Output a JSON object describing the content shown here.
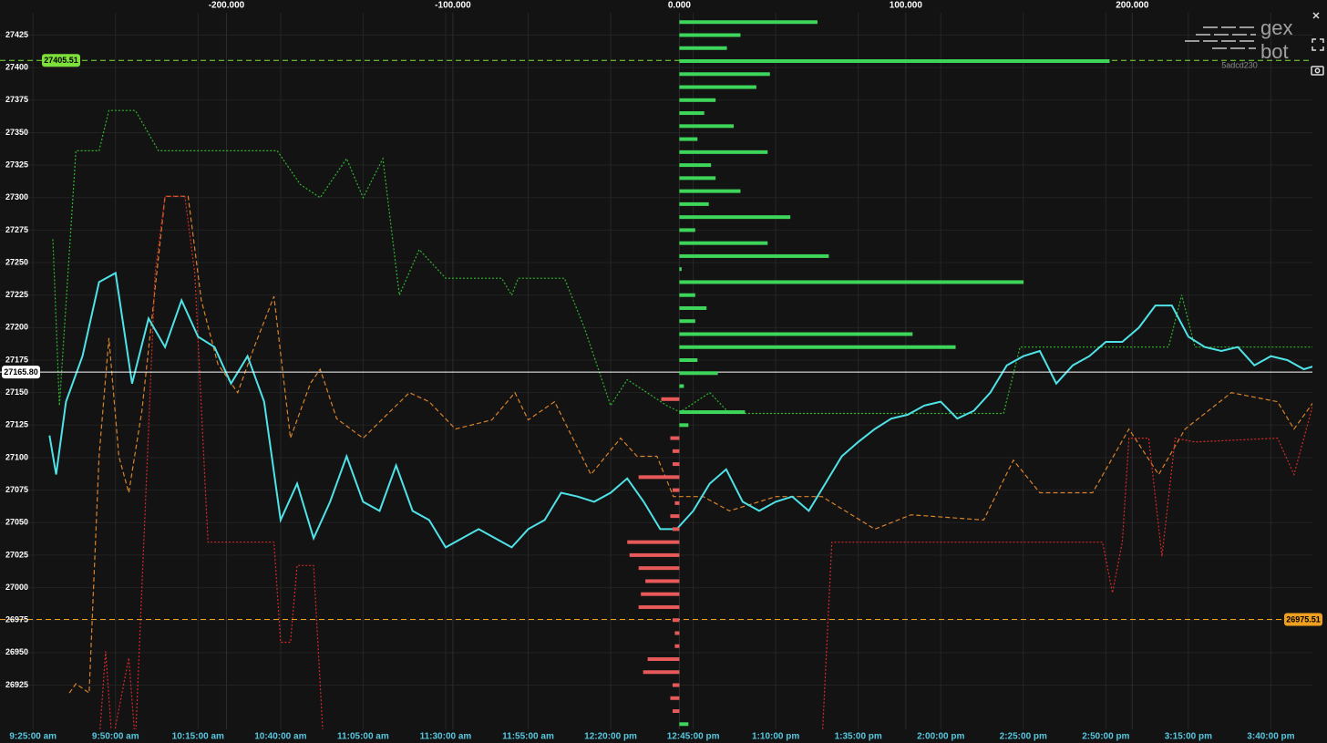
{
  "chart_data": [
    {
      "type": "line",
      "grid": true,
      "xlim": [
        555,
        957
      ],
      "ylim": [
        26891,
        27452
      ],
      "xticks": [
        {
          "value": 565,
          "label": "9:25:00 am"
        },
        {
          "value": 590,
          "label": "9:50:00 am"
        },
        {
          "value": 615,
          "label": "10:15:00 am"
        },
        {
          "value": 640,
          "label": "10:40:00 am"
        },
        {
          "value": 665,
          "label": "11:05:00 am"
        },
        {
          "value": 690,
          "label": "11:30:00 am"
        },
        {
          "value": 715,
          "label": "11:55:00 am"
        },
        {
          "value": 740,
          "label": "12:20:00 pm"
        },
        {
          "value": 765,
          "label": "12:45:00 pm"
        },
        {
          "value": 790,
          "label": "1:10:00 pm"
        },
        {
          "value": 815,
          "label": "1:35:00 pm"
        },
        {
          "value": 840,
          "label": "2:00:00 pm"
        },
        {
          "value": 865,
          "label": "2:25:00 pm"
        },
        {
          "value": 890,
          "label": "2:50:00 pm"
        },
        {
          "value": 915,
          "label": "3:15:00 pm"
        },
        {
          "value": 940,
          "label": "3:40:00 pm"
        }
      ],
      "yticks": [
        26925,
        26950,
        26975,
        27000,
        27025,
        27050,
        27075,
        27100,
        27125,
        27150,
        27175,
        27200,
        27225,
        27250,
        27275,
        27300,
        27325,
        27350,
        27375,
        27400,
        27425
      ],
      "levels": [
        {
          "value": 27405.51,
          "label": "27405.51",
          "color": "#7ee03a",
          "style": "dashed",
          "side": "left"
        },
        {
          "value": 26975.51,
          "label": "26975.51",
          "color": "#f0a020",
          "style": "dashed",
          "side": "right"
        },
        {
          "value": 27165.8,
          "label": "27165.80",
          "color": "#ffffff",
          "style": "solid",
          "side": "left"
        }
      ],
      "series": [
        {
          "color": "#2fb52f",
          "style": "dotted",
          "x": [
            571,
            573,
            578,
            585,
            588,
            596,
            603,
            639,
            646,
            652,
            660,
            665,
            671,
            676,
            682,
            690,
            707,
            710,
            712,
            726,
            732,
            740,
            745,
            757,
            761,
            770,
            776,
            859,
            864,
            909,
            913,
            917,
            956
          ],
          "values": [
            27268,
            27140,
            27336,
            27336,
            27367,
            27367,
            27336,
            27336,
            27310,
            27300,
            27330,
            27300,
            27330,
            27225,
            27260,
            27238,
            27238,
            27225,
            27238,
            27238,
            27200,
            27140,
            27160,
            27140,
            27135,
            27150,
            27134,
            27134,
            27185,
            27185,
            27225,
            27185,
            27185
          ]
        },
        {
          "color": "#d9822b",
          "style": "dashed",
          "x": [
            576,
            578,
            582,
            585,
            588,
            591,
            594,
            598,
            605,
            612,
            616,
            621,
            627,
            632,
            638,
            643,
            649,
            652,
            657,
            665,
            679,
            685,
            693,
            704,
            711,
            715,
            723,
            734,
            743,
            748,
            754,
            759,
            768,
            776,
            790,
            804,
            820,
            831,
            853,
            862,
            870,
            886,
            897,
            906,
            914,
            928,
            942,
            947,
            953,
            956
          ],
          "values": [
            26919,
            26926,
            26919,
            27101,
            27192,
            27101,
            27073,
            27136,
            27301,
            27301,
            27221,
            27172,
            27150,
            27185,
            27224,
            27115,
            27157,
            27168,
            27130,
            27115,
            27150,
            27143,
            27122,
            27129,
            27150,
            27129,
            27143,
            27087,
            27115,
            27101,
            27101,
            27070,
            27070,
            27059,
            27070,
            27070,
            27045,
            27056,
            27052,
            27098,
            27073,
            27073,
            27122,
            27087,
            27122,
            27150,
            27143,
            27122,
            27143,
            27133
          ]
        },
        {
          "color": "#d42a2a",
          "style": "dotted",
          "x": [
            585,
            587,
            589,
            594,
            596,
            602,
            605,
            611,
            614,
            618,
            638,
            640,
            643,
            645,
            650,
            653,
            720,
            804,
            807,
            889,
            892,
            895,
            897,
            903,
            907,
            911,
            917,
            942,
            947,
            953,
            956
          ],
          "values": [
            26880,
            26951,
            26880,
            26946,
            26880,
            27242,
            27301,
            27301,
            27242,
            27035,
            27035,
            26958,
            26958,
            27017,
            27017,
            26880,
            null,
            26880,
            27035,
            27035,
            26996,
            27035,
            27115,
            27115,
            27024,
            27115,
            27112,
            27115,
            27087,
            27143,
            27129
          ]
        },
        {
          "color": "#4fe3e8",
          "style": "solid",
          "x": [
            570,
            572,
            575,
            580,
            585,
            590,
            595,
            600,
            605,
            610,
            615,
            620,
            625,
            630,
            635,
            640,
            645,
            650,
            655,
            660,
            665,
            670,
            675,
            680,
            685,
            690,
            695,
            700,
            705,
            710,
            715,
            720,
            725,
            730,
            735,
            740,
            745,
            750,
            755,
            760,
            765,
            770,
            775,
            780,
            785,
            790,
            795,
            800,
            805,
            810,
            815,
            820,
            825,
            830,
            835,
            840,
            845,
            850,
            855,
            860,
            865,
            870,
            875,
            880,
            885,
            890,
            895,
            900,
            905,
            910,
            915,
            920,
            925,
            930,
            935,
            940,
            945,
            950,
            954
          ],
          "values": [
            27117,
            27087,
            27143,
            27178,
            27235,
            27242,
            27157,
            27207,
            27185,
            27221,
            27193,
            27185,
            27157,
            27178,
            27143,
            27052,
            27080,
            27038,
            27066,
            27101,
            27066,
            27059,
            27094,
            27059,
            27052,
            27031,
            27038,
            27045,
            27038,
            27031,
            27045,
            27052,
            27073,
            27070,
            27066,
            27073,
            27084,
            27066,
            27045,
            27045,
            27059,
            27080,
            27091,
            27066,
            27059,
            27066,
            27070,
            27059,
            27080,
            27101,
            27112,
            27122,
            27130,
            27133,
            27140,
            27143,
            27130,
            27136,
            27150,
            27171,
            27178,
            27182,
            27157,
            27171,
            27178,
            27189,
            27189,
            27200,
            27217,
            27217,
            27193,
            27185,
            27182,
            27185,
            27171,
            27178,
            27175,
            27168,
            27171
          ]
        }
      ]
    },
    {
      "type": "barh",
      "xlim": [
        -300,
        286
      ],
      "ylim": [
        26891,
        27452
      ],
      "xticks": [
        {
          "value": -200,
          "label": "-200.000"
        },
        {
          "value": -100,
          "label": "-100.000"
        },
        {
          "value": 0,
          "label": "0.000"
        },
        {
          "value": 100,
          "label": "100.000"
        },
        {
          "value": 200,
          "label": "200.000"
        }
      ],
      "positive_color": "#3dd65b",
      "negative_color": "#e85a5a",
      "y": [
        27435,
        27425,
        27415,
        27405,
        27395,
        27385,
        27375,
        27365,
        27355,
        27345,
        27335,
        27325,
        27315,
        27305,
        27295,
        27285,
        27275,
        27265,
        27255,
        27245,
        27235,
        27225,
        27215,
        27205,
        27195,
        27185,
        27175,
        27165,
        27155,
        27145,
        27135,
        27125,
        27115,
        27105,
        27095,
        27085,
        27075,
        27065,
        27055,
        27045,
        27035,
        27025,
        27015,
        27005,
        26995,
        26985,
        26975,
        26965,
        26955,
        26945,
        26935,
        26925,
        26915,
        26905,
        26895
      ],
      "values": [
        61,
        27,
        21,
        190,
        40,
        34,
        16,
        11,
        24,
        8,
        39,
        14,
        16,
        27,
        13,
        49,
        7,
        39,
        66,
        1,
        152,
        7,
        12,
        7,
        103,
        122,
        8,
        17,
        2,
        -8,
        29,
        4,
        -4,
        -3,
        -3,
        -18,
        -3,
        -2,
        -4,
        -3,
        -23,
        -22,
        -18,
        -15,
        -17,
        -18,
        -3,
        -2,
        -2,
        -14,
        -16,
        -3,
        -4,
        -3,
        4
      ]
    }
  ],
  "logo": {
    "line1": "gex",
    "line2": "bot",
    "id": "5adcd230"
  }
}
